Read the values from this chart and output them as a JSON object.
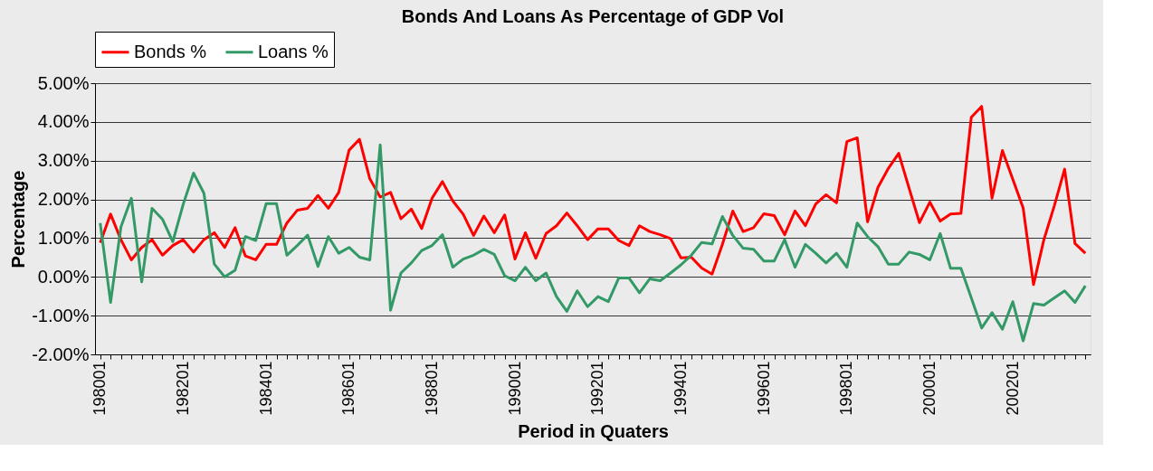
{
  "chart_data": {
    "type": "line",
    "title": "Bonds And Loans As Percentage of GDP Vol",
    "xlabel": "Period in Quaters",
    "ylabel": "Percentage",
    "categories": [
      "198001",
      null,
      null,
      null,
      null,
      null,
      null,
      null,
      "198201",
      null,
      null,
      null,
      null,
      null,
      null,
      null,
      "198401",
      null,
      null,
      null,
      null,
      null,
      null,
      null,
      "198601",
      null,
      null,
      null,
      null,
      null,
      null,
      null,
      "198801",
      null,
      null,
      null,
      null,
      null,
      null,
      null,
      "199001",
      null,
      null,
      null,
      null,
      null,
      null,
      null,
      "199201",
      null,
      null,
      null,
      null,
      null,
      null,
      null,
      "199401",
      null,
      null,
      null,
      null,
      null,
      null,
      null,
      "199601",
      null,
      null,
      null,
      null,
      null,
      null,
      null,
      "199801",
      null,
      null,
      null,
      null,
      null,
      null,
      null,
      "200001",
      null,
      null,
      null,
      null,
      null,
      null,
      null,
      "200201",
      null,
      null,
      null,
      null,
      null,
      null,
      null
    ],
    "series": [
      {
        "name": "Bonds %",
        "color": "#ff0000",
        "values": [
          0.88,
          1.62,
          0.96,
          0.44,
          0.76,
          0.96,
          0.56,
          0.81,
          0.96,
          0.64,
          0.96,
          1.14,
          0.76,
          1.27,
          0.54,
          0.44,
          0.84,
          0.84,
          1.39,
          1.72,
          1.77,
          2.1,
          1.77,
          2.18,
          3.27,
          3.55,
          2.53,
          2.06,
          2.18,
          1.5,
          1.75,
          1.25,
          2.03,
          2.46,
          1.96,
          1.62,
          1.07,
          1.57,
          1.14,
          1.6,
          0.46,
          1.14,
          0.48,
          1.12,
          1.32,
          1.65,
          1.32,
          0.96,
          1.24,
          1.24,
          0.94,
          0.81,
          1.32,
          1.17,
          1.09,
          0.99,
          0.49,
          0.51,
          0.23,
          0.07,
          0.84,
          1.7,
          1.17,
          1.27,
          1.63,
          1.58,
          1.09,
          1.7,
          1.32,
          1.88,
          2.12,
          1.91,
          3.49,
          3.59,
          1.42,
          2.31,
          2.8,
          3.19,
          2.29,
          1.4,
          1.93,
          1.44,
          1.62,
          1.64,
          4.12,
          4.4,
          2.03,
          3.26,
          2.52,
          1.78,
          -0.2,
          0.96,
          1.83,
          2.78,
          0.86,
          0.61
        ]
      },
      {
        "name": "Loans %",
        "color": "#339966",
        "values": [
          1.39,
          -0.66,
          1.29,
          2.03,
          -0.13,
          1.77,
          1.49,
          0.91,
          1.87,
          2.68,
          2.16,
          0.33,
          0.0,
          0.17,
          1.04,
          0.94,
          1.89,
          1.89,
          0.56,
          0.81,
          1.08,
          0.27,
          1.04,
          0.61,
          0.76,
          0.51,
          0.44,
          3.41,
          -0.86,
          0.1,
          0.36,
          0.68,
          0.81,
          1.09,
          0.25,
          0.46,
          0.56,
          0.71,
          0.58,
          0.03,
          -0.1,
          0.25,
          -0.1,
          0.1,
          -0.51,
          -0.89,
          -0.36,
          -0.77,
          -0.51,
          -0.64,
          -0.03,
          -0.03,
          -0.41,
          -0.05,
          -0.1,
          0.1,
          0.31,
          0.56,
          0.89,
          0.85,
          1.56,
          1.07,
          0.74,
          0.71,
          0.41,
          0.41,
          0.96,
          0.25,
          0.84,
          0.61,
          0.36,
          0.61,
          0.25,
          1.39,
          1.04,
          0.78,
          0.33,
          0.33,
          0.64,
          0.58,
          0.44,
          1.12,
          0.22,
          0.22,
          -0.54,
          -1.32,
          -0.92,
          -1.35,
          -0.64,
          -1.65,
          -0.69,
          -0.73,
          -0.54,
          -0.36,
          -0.66,
          -0.23
        ]
      }
    ],
    "ylim": [
      -2,
      5
    ],
    "yticks": [
      {
        "value": -2,
        "label": "-2.00%"
      },
      {
        "value": -1,
        "label": "-1.00%"
      },
      {
        "value": 0,
        "label": "0.00%"
      },
      {
        "value": 1,
        "label": "1.00%"
      },
      {
        "value": 2,
        "label": "2.00%"
      },
      {
        "value": 3,
        "label": "3.00%"
      },
      {
        "value": 4,
        "label": "4.00%"
      },
      {
        "value": 5,
        "label": "5.00%"
      }
    ],
    "grid": "y",
    "legend": "top",
    "marker": "none",
    "line_style": "solid"
  }
}
